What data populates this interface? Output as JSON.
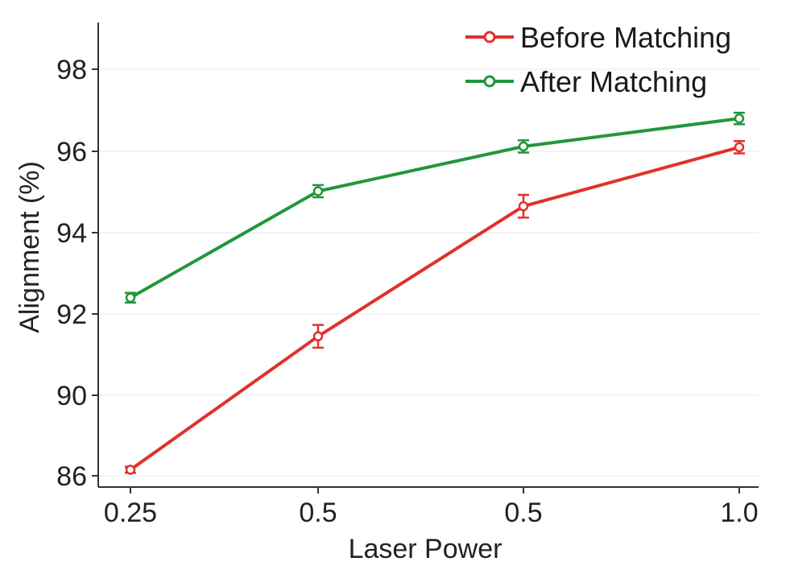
{
  "chart_data": {
    "type": "line",
    "title": "",
    "xlabel": "Laser Power",
    "ylabel": "Alignment (%)",
    "categories": [
      "0.25",
      "0.5",
      "0.5",
      "1.0"
    ],
    "x_positions": [
      0,
      1,
      2,
      3.05
    ],
    "y_ticks": [
      {
        "label": "86",
        "value": 86
      },
      {
        "label": "90",
        "value": 90
      },
      {
        "label": "92",
        "value": 92
      },
      {
        "label": "94",
        "value": 94
      },
      {
        "label": "96",
        "value": 96
      },
      {
        "label": "98",
        "value": 98
      }
    ],
    "ylim": [
      85.7,
      99.2
    ],
    "grid": "horizontal",
    "legend_position": "top-right",
    "series": [
      {
        "name": "Before Matching",
        "color": "#e0312b",
        "values": [
          86.3,
          91.45,
          94.65,
          96.1
        ],
        "errors": [
          0.15,
          0.28,
          0.28,
          0.15
        ]
      },
      {
        "name": "After Matching",
        "color": "#22973a",
        "values": [
          92.4,
          95.02,
          96.12,
          96.8
        ],
        "errors": [
          0.12,
          0.15,
          0.15,
          0.14
        ]
      }
    ]
  }
}
